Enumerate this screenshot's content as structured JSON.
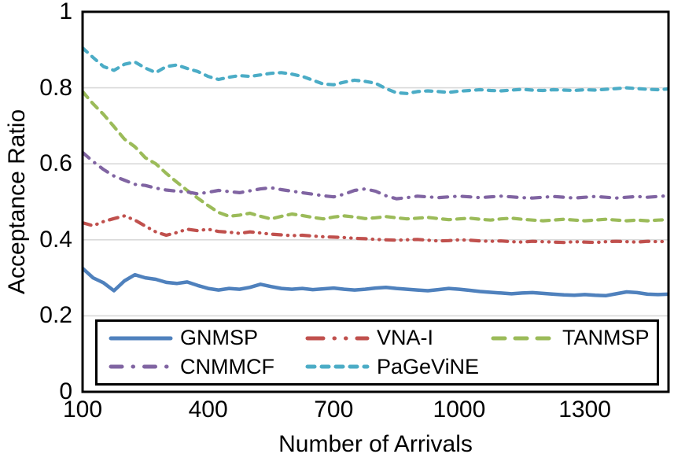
{
  "chart_data": {
    "type": "line",
    "title": "",
    "xlabel": "Number of Arrivals",
    "ylabel": "Acceptance Ratio",
    "xlim": [
      100,
      1500
    ],
    "ylim": [
      0,
      1
    ],
    "xticks": [
      100,
      400,
      700,
      1000,
      1300
    ],
    "yticks": [
      0,
      0.2,
      0.4,
      0.6,
      0.8,
      1
    ],
    "grid": "horizontal-only",
    "gridline_color": "#d9d9d9",
    "border_color": "#000000",
    "text_color": "#000000",
    "legend_position": "inside-bottom",
    "legend_order": [
      "GNMSP",
      "VNA-I",
      "TANMSP",
      "CNMMCF",
      "PaGeViNE"
    ],
    "x": [
      100,
      125,
      150,
      175,
      200,
      225,
      250,
      275,
      300,
      325,
      350,
      375,
      400,
      425,
      450,
      475,
      500,
      525,
      550,
      575,
      600,
      625,
      650,
      675,
      700,
      725,
      750,
      775,
      800,
      825,
      850,
      875,
      900,
      925,
      950,
      975,
      1000,
      1025,
      1050,
      1075,
      1100,
      1125,
      1150,
      1175,
      1200,
      1225,
      1250,
      1275,
      1300,
      1325,
      1350,
      1375,
      1400,
      1425,
      1450,
      1475,
      1500
    ],
    "series": [
      {
        "name": "GNMSP",
        "color": "#4F81BD",
        "style": "solid",
        "values": [
          0.325,
          0.3,
          0.287,
          0.266,
          0.292,
          0.308,
          0.3,
          0.296,
          0.288,
          0.285,
          0.289,
          0.28,
          0.272,
          0.268,
          0.272,
          0.27,
          0.275,
          0.283,
          0.277,
          0.272,
          0.27,
          0.272,
          0.269,
          0.271,
          0.273,
          0.27,
          0.268,
          0.27,
          0.273,
          0.275,
          0.272,
          0.27,
          0.268,
          0.266,
          0.269,
          0.272,
          0.27,
          0.267,
          0.264,
          0.262,
          0.26,
          0.258,
          0.26,
          0.261,
          0.259,
          0.257,
          0.255,
          0.254,
          0.256,
          0.254,
          0.253,
          0.258,
          0.263,
          0.261,
          0.257,
          0.256,
          0.257
        ]
      },
      {
        "name": "VNA-I",
        "color": "#C0504D",
        "style": "dash-dot-dot",
        "values": [
          0.445,
          0.437,
          0.448,
          0.456,
          0.463,
          0.452,
          0.436,
          0.421,
          0.412,
          0.419,
          0.428,
          0.424,
          0.428,
          0.422,
          0.42,
          0.417,
          0.421,
          0.418,
          0.415,
          0.413,
          0.411,
          0.412,
          0.41,
          0.408,
          0.407,
          0.406,
          0.404,
          0.403,
          0.401,
          0.4,
          0.399,
          0.4,
          0.401,
          0.399,
          0.397,
          0.398,
          0.4,
          0.399,
          0.397,
          0.396,
          0.397,
          0.395,
          0.394,
          0.396,
          0.395,
          0.394,
          0.393,
          0.395,
          0.394,
          0.393,
          0.395,
          0.396,
          0.395,
          0.394,
          0.396,
          0.395,
          0.396
        ]
      },
      {
        "name": "TANMSP",
        "color": "#9BBB59",
        "style": "dashed",
        "values": [
          0.79,
          0.758,
          0.73,
          0.698,
          0.665,
          0.645,
          0.616,
          0.6,
          0.575,
          0.552,
          0.53,
          0.51,
          0.49,
          0.472,
          0.462,
          0.465,
          0.47,
          0.462,
          0.455,
          0.462,
          0.468,
          0.464,
          0.459,
          0.455,
          0.46,
          0.463,
          0.46,
          0.456,
          0.458,
          0.461,
          0.458,
          0.455,
          0.457,
          0.459,
          0.456,
          0.453,
          0.455,
          0.457,
          0.454,
          0.452,
          0.455,
          0.457,
          0.454,
          0.452,
          0.45,
          0.452,
          0.454,
          0.452,
          0.45,
          0.452,
          0.454,
          0.452,
          0.45,
          0.452,
          0.45,
          0.452,
          0.453
        ]
      },
      {
        "name": "CNMMCF",
        "color": "#8064A2",
        "style": "dash-dot",
        "values": [
          0.63,
          0.606,
          0.585,
          0.568,
          0.557,
          0.546,
          0.543,
          0.536,
          0.531,
          0.528,
          0.526,
          0.521,
          0.525,
          0.53,
          0.527,
          0.524,
          0.529,
          0.534,
          0.537,
          0.532,
          0.528,
          0.524,
          0.52,
          0.516,
          0.513,
          0.52,
          0.53,
          0.534,
          0.528,
          0.516,
          0.508,
          0.511,
          0.515,
          0.513,
          0.511,
          0.513,
          0.515,
          0.513,
          0.511,
          0.513,
          0.515,
          0.513,
          0.511,
          0.51,
          0.512,
          0.514,
          0.512,
          0.51,
          0.512,
          0.514,
          0.512,
          0.51,
          0.512,
          0.514,
          0.512,
          0.514,
          0.516
        ]
      },
      {
        "name": "PaGeViNE",
        "color": "#4BACC6",
        "style": "short-dash",
        "values": [
          0.905,
          0.88,
          0.856,
          0.846,
          0.862,
          0.868,
          0.852,
          0.84,
          0.856,
          0.86,
          0.851,
          0.843,
          0.83,
          0.822,
          0.828,
          0.832,
          0.83,
          0.834,
          0.838,
          0.84,
          0.836,
          0.83,
          0.82,
          0.81,
          0.808,
          0.815,
          0.82,
          0.817,
          0.812,
          0.798,
          0.787,
          0.785,
          0.79,
          0.792,
          0.79,
          0.788,
          0.791,
          0.793,
          0.795,
          0.793,
          0.792,
          0.794,
          0.796,
          0.794,
          0.793,
          0.795,
          0.794,
          0.793,
          0.795,
          0.794,
          0.796,
          0.798,
          0.8,
          0.798,
          0.796,
          0.795,
          0.797
        ]
      }
    ]
  }
}
